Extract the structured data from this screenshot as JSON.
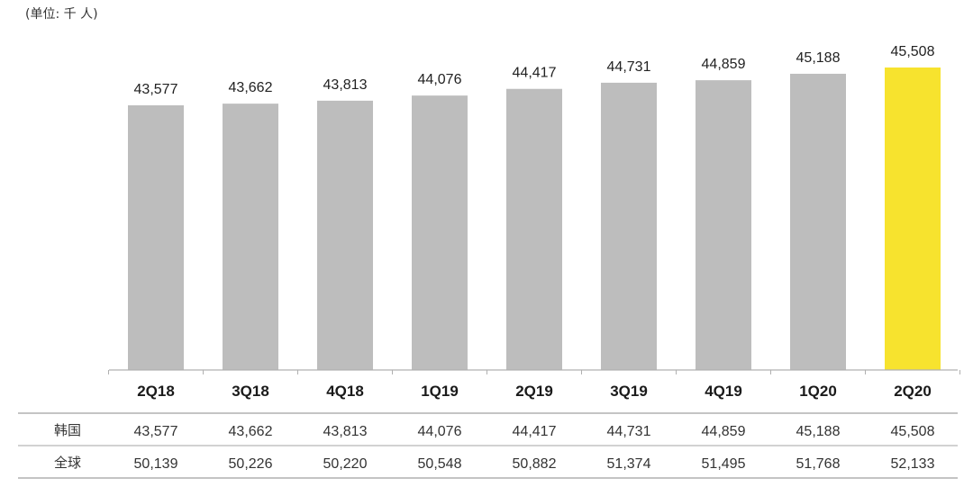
{
  "unit_label": "(单位: 千 人)",
  "colors": {
    "bar": "#bdbdbd",
    "highlight": "#f7e32e",
    "axis": "#b0b0b0",
    "rule": "#888888"
  },
  "chart_data": {
    "type": "bar",
    "title": "",
    "xlabel": "",
    "ylabel": "",
    "unit": "(单位: 千 人)",
    "categories": [
      "2Q18",
      "3Q18",
      "4Q18",
      "1Q19",
      "2Q19",
      "3Q19",
      "4Q19",
      "1Q20",
      "2Q20"
    ],
    "values": [
      43577,
      43662,
      43813,
      44076,
      44417,
      44731,
      44859,
      45188,
      45508
    ],
    "value_labels": [
      "43,577",
      "43,662",
      "43,813",
      "44,076",
      "44,417",
      "44,731",
      "44,859",
      "45,188",
      "45,508"
    ],
    "highlight_index": 8,
    "table": {
      "rows": [
        {
          "label": "韩国",
          "values": [
            "43,577",
            "43,662",
            "43,813",
            "44,076",
            "44,417",
            "44,731",
            "44,859",
            "45,188",
            "45,508"
          ]
        },
        {
          "label": "全球",
          "values": [
            "50,139",
            "50,226",
            "50,220",
            "50,548",
            "50,882",
            "51,374",
            "51,495",
            "51,768",
            "52,133"
          ]
        }
      ]
    }
  }
}
